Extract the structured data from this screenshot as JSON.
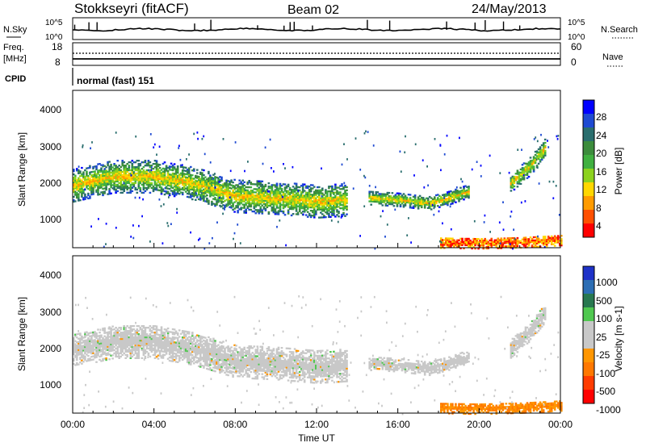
{
  "header": {
    "station": "Stokkseyri (fitACF)",
    "beam": "Beam 02",
    "date": "24/May/2013"
  },
  "noise_panel": {
    "left_label": "N.Sky",
    "right_label": "N.Search",
    "left_ticks": [
      "10^5",
      "10^0"
    ],
    "right_ticks": [
      "10^5",
      "10^0"
    ]
  },
  "freq_panel": {
    "left_label_1": "Freq.",
    "left_label_2": "[MHz]",
    "left_ticks": [
      "18",
      "8"
    ],
    "right_ticks": [
      "60",
      "0"
    ],
    "right_label": "Nave"
  },
  "cpid_panel": {
    "label": "CPID",
    "value": "normal (fast) 151"
  },
  "power_panel": {
    "ylabel": "Slant Range [km]",
    "yticks": [
      "4000",
      "3000",
      "2000",
      "1000"
    ],
    "colorbar_label": "Power [dB]",
    "colorbar_ticks": [
      "28",
      "24",
      "20",
      "16",
      "12",
      "8",
      "4"
    ],
    "colors": [
      "#0000ff",
      "#1e4ad2",
      "#2a6e6e",
      "#3c8c3c",
      "#40b040",
      "#8cd21e",
      "#ffd700",
      "#ff9b00",
      "#ff5000",
      "#ff0000"
    ]
  },
  "velocity_panel": {
    "ylabel": "Slant Range [km]",
    "yticks": [
      "4000",
      "3000",
      "2000",
      "1000"
    ],
    "colorbar_label": "Velocity [m s-1]",
    "colorbar_ticks": [
      "1000",
      "500",
      "100",
      "25",
      "-25",
      "-100",
      "-500",
      "-1000"
    ],
    "colors": [
      "#1e32c8",
      "#2d6eb4",
      "#287850",
      "#50c850",
      "#c8c8c8",
      "#c8c8c8",
      "#ff9600",
      "#ff7800",
      "#ff3c00",
      "#ff0000"
    ]
  },
  "xaxis": {
    "label": "Time UT",
    "ticks": [
      "00:00",
      "04:00",
      "08:00",
      "12:00",
      "16:00",
      "20:00",
      "00:00"
    ]
  },
  "chart_data": {
    "type": "heatmap",
    "xlabel": "Time UT",
    "ylabel": "Slant Range [km]",
    "xlim_hours": [
      0,
      24
    ],
    "ylim_km": [
      180,
      4600
    ],
    "echo_bands": [
      {
        "name": "main band",
        "points_hours_km": [
          [
            0,
            1950
          ],
          [
            2,
            2200
          ],
          [
            4,
            2200
          ],
          [
            6,
            2000
          ],
          [
            8,
            1650
          ],
          [
            10,
            1600
          ],
          [
            12,
            1500
          ],
          [
            13.5,
            1550
          ]
        ],
        "width_km": 450
      },
      {
        "name": "evening band",
        "points_hours_km": [
          [
            14.5,
            1600
          ],
          [
            16,
            1550
          ],
          [
            17.5,
            1450
          ],
          [
            18.5,
            1600
          ],
          [
            19.5,
            1800
          ]
        ],
        "width_km": 180
      },
      {
        "name": "late band",
        "points_hours_km": [
          [
            21.5,
            2000
          ],
          [
            22.5,
            2500
          ],
          [
            23.2,
            3000
          ]
        ],
        "width_km": 250
      },
      {
        "name": "near-range band",
        "points_hours_km": [
          [
            18,
            350
          ],
          [
            20,
            330
          ],
          [
            22,
            360
          ],
          [
            24,
            420
          ]
        ],
        "width_km": 150
      }
    ],
    "power_range_db": [
      0,
      30
    ],
    "velocity_range_ms": [
      -1000,
      1000
    ]
  }
}
